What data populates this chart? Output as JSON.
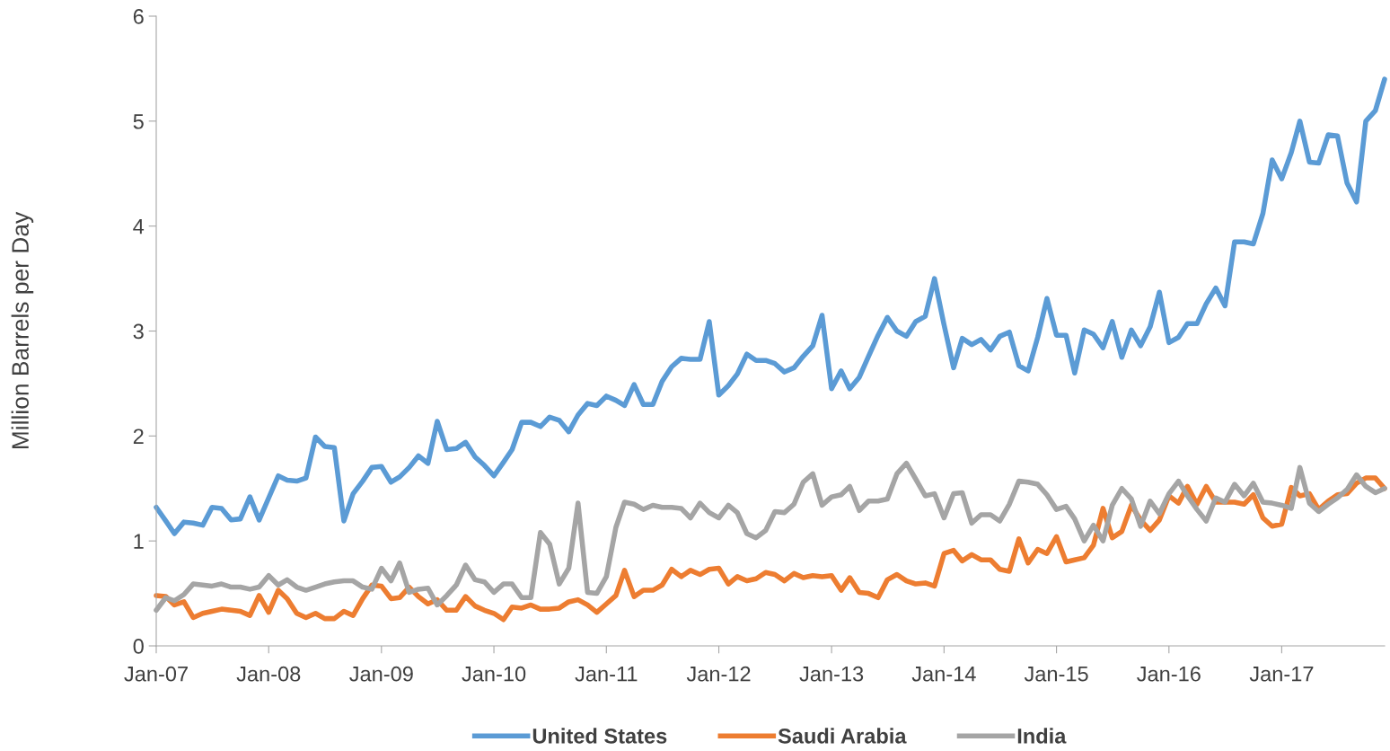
{
  "chart_data": {
    "type": "line",
    "ylabel": "Million Barrels per Day",
    "x": [
      "2007-01",
      "2007-02",
      "2007-03",
      "2007-04",
      "2007-05",
      "2007-06",
      "2007-07",
      "2007-08",
      "2007-09",
      "2007-10",
      "2007-11",
      "2007-12",
      "2008-01",
      "2008-02",
      "2008-03",
      "2008-04",
      "2008-05",
      "2008-06",
      "2008-07",
      "2008-08",
      "2008-09",
      "2008-10",
      "2008-11",
      "2008-12",
      "2009-01",
      "2009-02",
      "2009-03",
      "2009-04",
      "2009-05",
      "2009-06",
      "2009-07",
      "2009-08",
      "2009-09",
      "2009-10",
      "2009-11",
      "2009-12",
      "2010-01",
      "2010-02",
      "2010-03",
      "2010-04",
      "2010-05",
      "2010-06",
      "2010-07",
      "2010-08",
      "2010-09",
      "2010-10",
      "2010-11",
      "2010-12",
      "2011-01",
      "2011-02",
      "2011-03",
      "2011-04",
      "2011-05",
      "2011-06",
      "2011-07",
      "2011-08",
      "2011-09",
      "2011-10",
      "2011-11",
      "2011-12",
      "2012-01",
      "2012-02",
      "2012-03",
      "2012-04",
      "2012-05",
      "2012-06",
      "2012-07",
      "2012-08",
      "2012-09",
      "2012-10",
      "2012-11",
      "2012-12",
      "2013-01",
      "2013-02",
      "2013-03",
      "2013-04",
      "2013-05",
      "2013-06",
      "2013-07",
      "2013-08",
      "2013-09",
      "2013-10",
      "2013-11",
      "2013-12",
      "2014-01",
      "2014-02",
      "2014-03",
      "2014-04",
      "2014-05",
      "2014-06",
      "2014-07",
      "2014-08",
      "2014-09",
      "2014-10",
      "2014-11",
      "2014-12",
      "2015-01",
      "2015-02",
      "2015-03",
      "2015-04",
      "2015-05",
      "2015-06",
      "2015-07",
      "2015-08",
      "2015-09",
      "2015-10",
      "2015-11",
      "2015-12",
      "2016-01",
      "2016-02",
      "2016-03",
      "2016-04",
      "2016-05",
      "2016-06",
      "2016-07",
      "2016-08",
      "2016-09",
      "2016-10",
      "2016-11",
      "2016-12",
      "2017-01",
      "2017-02",
      "2017-03",
      "2017-04",
      "2017-05",
      "2017-06",
      "2017-07",
      "2017-08",
      "2017-09",
      "2017-10",
      "2017-11",
      "2017-12"
    ],
    "series": [
      {
        "name": "United States",
        "color": "#5b9bd5",
        "values": [
          1.32,
          1.19,
          1.07,
          1.18,
          1.17,
          1.15,
          1.32,
          1.31,
          1.2,
          1.21,
          1.42,
          1.2,
          1.41,
          1.62,
          1.58,
          1.57,
          1.6,
          1.99,
          1.9,
          1.89,
          1.19,
          1.45,
          1.57,
          1.7,
          1.71,
          1.56,
          1.61,
          1.7,
          1.81,
          1.74,
          2.14,
          1.87,
          1.88,
          1.94,
          1.8,
          1.72,
          1.62,
          1.75,
          1.87,
          2.13,
          2.13,
          2.09,
          2.18,
          2.15,
          2.04,
          2.2,
          2.31,
          2.29,
          2.38,
          2.34,
          2.29,
          2.49,
          2.3,
          2.3,
          2.52,
          2.66,
          2.74,
          2.73,
          2.73,
          3.09,
          2.39,
          2.48,
          2.59,
          2.78,
          2.72,
          2.72,
          2.69,
          2.61,
          2.65,
          2.76,
          2.86,
          3.15,
          2.45,
          2.62,
          2.45,
          2.56,
          2.76,
          2.96,
          3.13,
          3.0,
          2.95,
          3.09,
          3.14,
          3.5,
          3.06,
          2.65,
          2.93,
          2.87,
          2.92,
          2.82,
          2.95,
          2.99,
          2.67,
          2.62,
          2.94,
          3.31,
          2.96,
          2.96,
          2.6,
          3.01,
          2.97,
          2.84,
          3.09,
          2.75,
          3.01,
          2.86,
          3.04,
          3.37,
          2.89,
          2.94,
          3.07,
          3.07,
          3.26,
          3.41,
          3.24,
          3.85,
          3.85,
          3.83,
          4.12,
          4.63,
          4.45,
          4.7,
          5.0,
          4.61,
          4.6,
          4.87,
          4.86,
          4.41,
          4.23,
          5.0,
          5.1,
          5.4
        ]
      },
      {
        "name": "Saudi Arabia",
        "color": "#ed7d31",
        "values": [
          0.48,
          0.47,
          0.39,
          0.42,
          0.27,
          0.31,
          0.33,
          0.35,
          0.34,
          0.33,
          0.29,
          0.48,
          0.32,
          0.53,
          0.45,
          0.31,
          0.27,
          0.31,
          0.26,
          0.26,
          0.33,
          0.29,
          0.45,
          0.58,
          0.57,
          0.45,
          0.46,
          0.56,
          0.47,
          0.4,
          0.44,
          0.34,
          0.34,
          0.47,
          0.38,
          0.34,
          0.31,
          0.25,
          0.37,
          0.36,
          0.39,
          0.35,
          0.35,
          0.36,
          0.42,
          0.44,
          0.39,
          0.32,
          0.4,
          0.48,
          0.72,
          0.47,
          0.53,
          0.53,
          0.58,
          0.73,
          0.66,
          0.72,
          0.68,
          0.73,
          0.74,
          0.59,
          0.66,
          0.62,
          0.64,
          0.7,
          0.68,
          0.62,
          0.69,
          0.65,
          0.67,
          0.66,
          0.67,
          0.53,
          0.65,
          0.51,
          0.5,
          0.46,
          0.63,
          0.68,
          0.62,
          0.59,
          0.6,
          0.57,
          0.88,
          0.91,
          0.81,
          0.87,
          0.82,
          0.82,
          0.73,
          0.71,
          1.02,
          0.79,
          0.92,
          0.88,
          1.04,
          0.8,
          0.82,
          0.84,
          0.96,
          1.31,
          1.03,
          1.09,
          1.34,
          1.2,
          1.1,
          1.2,
          1.43,
          1.36,
          1.52,
          1.35,
          1.52,
          1.37,
          1.37,
          1.37,
          1.35,
          1.44,
          1.22,
          1.14,
          1.16,
          1.51,
          1.43,
          1.45,
          1.3,
          1.38,
          1.44,
          1.45,
          1.55,
          1.6,
          1.6,
          1.5
        ]
      },
      {
        "name": "India",
        "color": "#a5a5a5",
        "values": [
          0.34,
          0.46,
          0.43,
          0.49,
          0.59,
          0.58,
          0.57,
          0.59,
          0.56,
          0.56,
          0.54,
          0.56,
          0.67,
          0.58,
          0.63,
          0.56,
          0.53,
          0.56,
          0.59,
          0.61,
          0.62,
          0.62,
          0.56,
          0.54,
          0.74,
          0.62,
          0.79,
          0.51,
          0.54,
          0.55,
          0.39,
          0.48,
          0.58,
          0.77,
          0.63,
          0.61,
          0.51,
          0.59,
          0.59,
          0.46,
          0.46,
          1.08,
          0.97,
          0.59,
          0.74,
          1.36,
          0.51,
          0.5,
          0.66,
          1.13,
          1.37,
          1.35,
          1.3,
          1.34,
          1.32,
          1.32,
          1.31,
          1.22,
          1.36,
          1.27,
          1.22,
          1.34,
          1.27,
          1.07,
          1.03,
          1.1,
          1.28,
          1.27,
          1.35,
          1.56,
          1.64,
          1.34,
          1.42,
          1.44,
          1.52,
          1.29,
          1.38,
          1.38,
          1.4,
          1.64,
          1.74,
          1.59,
          1.43,
          1.45,
          1.22,
          1.45,
          1.46,
          1.17,
          1.25,
          1.25,
          1.19,
          1.35,
          1.57,
          1.56,
          1.54,
          1.44,
          1.3,
          1.33,
          1.21,
          1.0,
          1.15,
          1.0,
          1.34,
          1.5,
          1.4,
          1.14,
          1.38,
          1.26,
          1.45,
          1.57,
          1.43,
          1.3,
          1.19,
          1.41,
          1.37,
          1.54,
          1.43,
          1.55,
          1.37,
          1.36,
          1.34,
          1.31,
          1.7,
          1.36,
          1.28,
          1.35,
          1.41,
          1.49,
          1.63,
          1.52,
          1.46,
          1.5
        ]
      }
    ],
    "xlim": [
      "2007-01",
      "2017-12"
    ],
    "xticks": [
      {
        "value": "2007-01",
        "label": "Jan-07"
      },
      {
        "value": "2008-01",
        "label": "Jan-08"
      },
      {
        "value": "2009-01",
        "label": "Jan-09"
      },
      {
        "value": "2010-01",
        "label": "Jan-10"
      },
      {
        "value": "2011-01",
        "label": "Jan-11"
      },
      {
        "value": "2012-01",
        "label": "Jan-12"
      },
      {
        "value": "2013-01",
        "label": "Jan-13"
      },
      {
        "value": "2014-01",
        "label": "Jan-14"
      },
      {
        "value": "2015-01",
        "label": "Jan-15"
      },
      {
        "value": "2016-01",
        "label": "Jan-16"
      },
      {
        "value": "2017-01",
        "label": "Jan-17"
      }
    ],
    "ylim": [
      0,
      6
    ],
    "yticks": [
      0,
      1,
      2,
      3,
      4,
      5,
      6
    ],
    "grid": false,
    "legend": "bottom",
    "marker": "none",
    "line_style": "solid"
  }
}
